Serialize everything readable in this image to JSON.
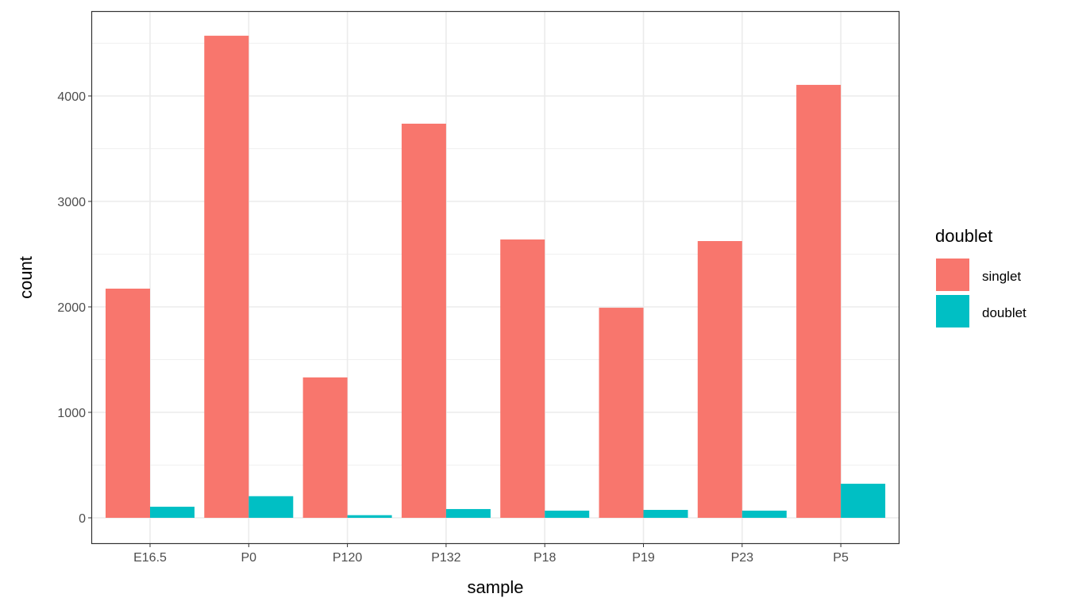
{
  "chart_data": {
    "type": "bar",
    "title": "",
    "xlabel": "sample",
    "ylabel": "count",
    "categories": [
      "E16.5",
      "P0",
      "P120",
      "P132",
      "P18",
      "P19",
      "P23",
      "P5"
    ],
    "series": [
      {
        "name": "singlet",
        "color": "#F8766D",
        "values": [
          2173,
          4571,
          1331,
          3737,
          2639,
          1992,
          2624,
          4105
        ]
      },
      {
        "name": "doublet",
        "color": "#00BFC4",
        "values": [
          105,
          205,
          25,
          83,
          68,
          75,
          68,
          323
        ]
      }
    ],
    "ylim": [
      -250,
      4800
    ],
    "yticks": [
      0,
      1000,
      2000,
      3000,
      4000
    ],
    "ytick_labels": [
      "0",
      "1000",
      "2000",
      "3000",
      "4000"
    ],
    "grid": true,
    "legend": {
      "title": "doublet",
      "placement": "right"
    }
  }
}
